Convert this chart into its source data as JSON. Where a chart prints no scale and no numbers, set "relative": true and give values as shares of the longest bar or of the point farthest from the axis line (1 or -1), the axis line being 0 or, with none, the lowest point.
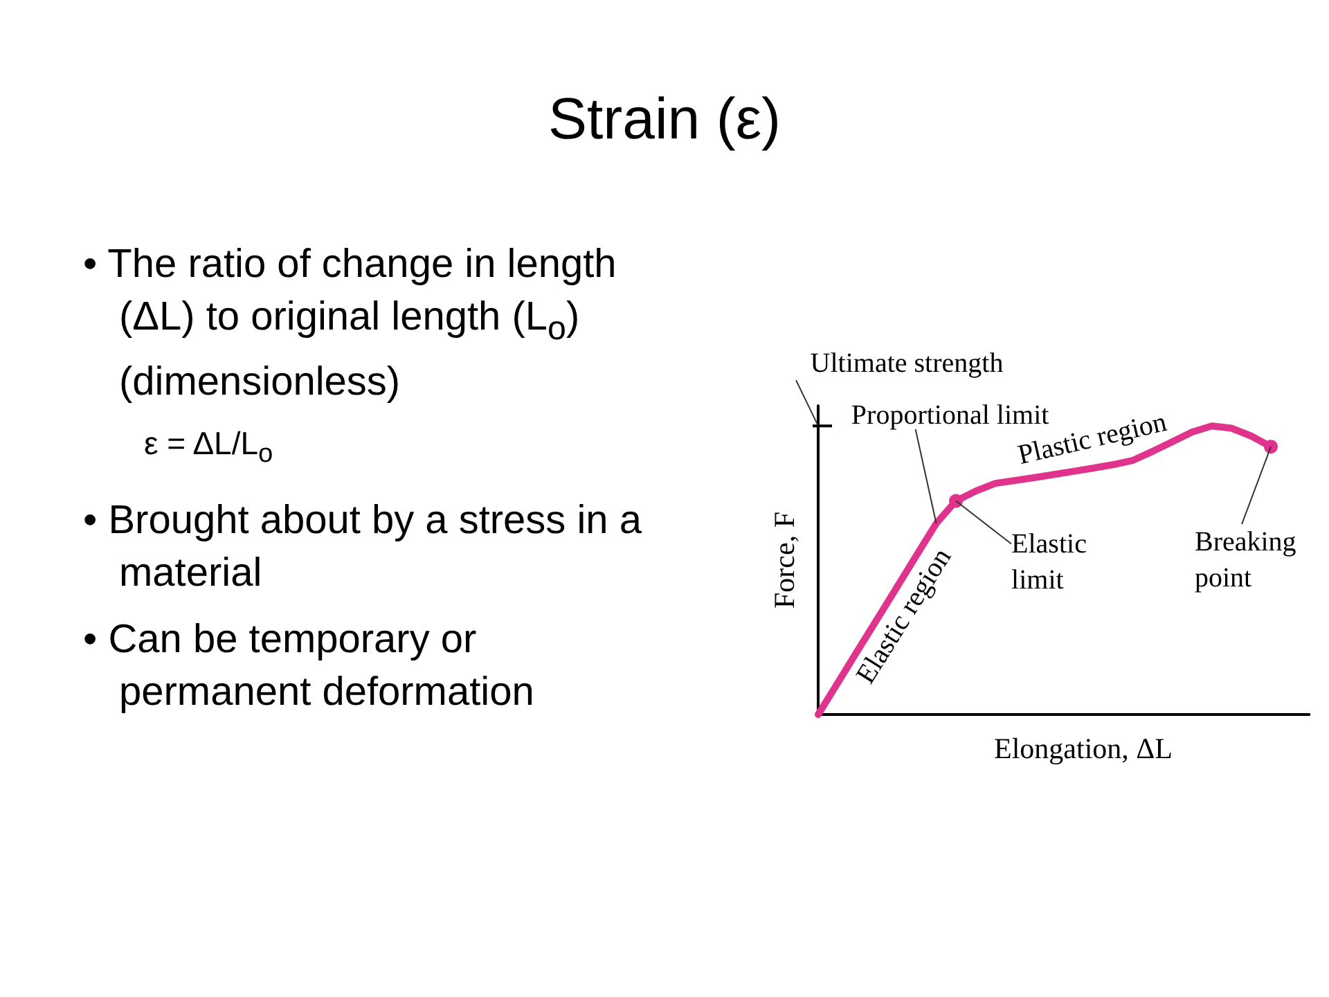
{
  "chart_data": {
    "type": "line",
    "title": "Strain (ε)",
    "xlabel": "Elongation, ΔL",
    "ylabel": "Force, F",
    "relative": true,
    "line_style": "solid",
    "annotations": [
      "• The ratio of change in length (ΔL) to original length (L$_{o}$) (dimensionless)\nε  = ΔL/L$_{o}$",
      "• Brought about by a stress in a material",
      "• Can be temporary or permanent deformation",
      "Ultimate strength",
      "Proportional limit",
      "Plastic region",
      "Elastic limit",
      "Elastic region",
      "Breaking point"
    ],
    "categories": [
      null,
      null,
      null,
      null,
      null,
      null,
      null,
      null,
      null,
      null,
      null,
      null,
      null,
      null,
      null,
      null,
      null,
      null,
      null,
      null,
      null,
      null,
      null,
      null
    ],
    "series": [
      {
        "color": "#e0338c",
        "values": [
          0,
          0.11,
          0.221,
          0.331,
          0.441,
          0.552,
          0.662,
          0.74,
          0.774,
          0.801,
          0.811,
          0.821,
          0.832,
          0.843,
          0.854,
          0.866,
          0.881,
          0.912,
          0.945,
          0.979,
          1,
          0.992,
          0.965,
          0.928
        ]
      }
    ]
  }
}
